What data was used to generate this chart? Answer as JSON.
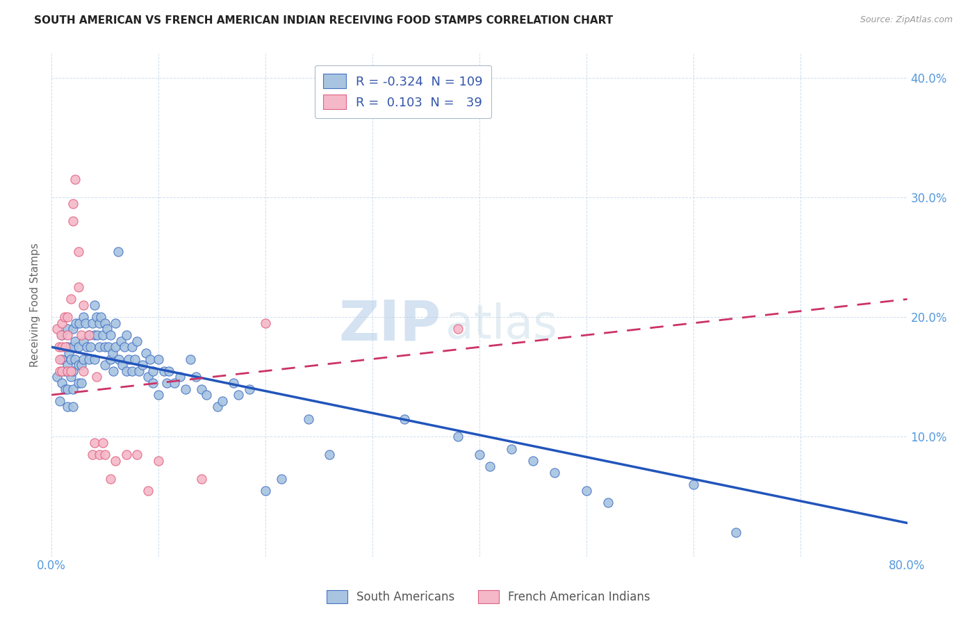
{
  "title": "SOUTH AMERICAN VS FRENCH AMERICAN INDIAN RECEIVING FOOD STAMPS CORRELATION CHART",
  "source": "Source: ZipAtlas.com",
  "ylabel": "Receiving Food Stamps",
  "xlim": [
    0.0,
    0.8
  ],
  "ylim": [
    0.0,
    0.42
  ],
  "xticks": [
    0.0,
    0.1,
    0.2,
    0.3,
    0.4,
    0.5,
    0.6,
    0.7,
    0.8
  ],
  "xticklabels": [
    "0.0%",
    "",
    "",
    "",
    "",
    "",
    "",
    "",
    "80.0%"
  ],
  "yticks": [
    0.0,
    0.1,
    0.2,
    0.3,
    0.4
  ],
  "yticklabels": [
    "",
    "10.0%",
    "20.0%",
    "30.0%",
    "40.0%"
  ],
  "blue_R": "-0.324",
  "blue_N": "109",
  "pink_R": "0.103",
  "pink_N": "39",
  "blue_color": "#a8c4e0",
  "pink_color": "#f4b8c8",
  "blue_edge_color": "#4472c4",
  "pink_edge_color": "#e06080",
  "blue_line_color": "#2255bb",
  "pink_line_color": "#cc3366",
  "tick_label_color": "#5599dd",
  "watermark_zip": "ZIP",
  "watermark_atlas": "atlas",
  "blue_trend": [
    0.175,
    0.028
  ],
  "pink_trend": [
    0.135,
    0.215
  ],
  "blue_scatter_x": [
    0.005,
    0.008,
    0.01,
    0.01,
    0.01,
    0.012,
    0.013,
    0.015,
    0.015,
    0.015,
    0.015,
    0.015,
    0.016,
    0.018,
    0.018,
    0.02,
    0.02,
    0.02,
    0.02,
    0.02,
    0.022,
    0.022,
    0.023,
    0.025,
    0.025,
    0.025,
    0.026,
    0.028,
    0.028,
    0.03,
    0.03,
    0.03,
    0.032,
    0.033,
    0.035,
    0.035,
    0.036,
    0.038,
    0.04,
    0.04,
    0.04,
    0.042,
    0.043,
    0.045,
    0.045,
    0.046,
    0.048,
    0.05,
    0.05,
    0.05,
    0.052,
    0.053,
    0.055,
    0.055,
    0.057,
    0.058,
    0.06,
    0.06,
    0.062,
    0.063,
    0.065,
    0.066,
    0.068,
    0.07,
    0.07,
    0.072,
    0.075,
    0.075,
    0.078,
    0.08,
    0.082,
    0.085,
    0.088,
    0.09,
    0.092,
    0.095,
    0.095,
    0.1,
    0.1,
    0.105,
    0.108,
    0.11,
    0.115,
    0.12,
    0.125,
    0.13,
    0.135,
    0.14,
    0.145,
    0.155,
    0.16,
    0.17,
    0.175,
    0.185,
    0.2,
    0.215,
    0.24,
    0.26,
    0.33,
    0.38,
    0.4,
    0.41,
    0.43,
    0.45,
    0.47,
    0.5,
    0.52,
    0.6,
    0.64
  ],
  "blue_scatter_y": [
    0.15,
    0.13,
    0.145,
    0.165,
    0.185,
    0.155,
    0.14,
    0.16,
    0.175,
    0.19,
    0.14,
    0.125,
    0.17,
    0.165,
    0.15,
    0.175,
    0.19,
    0.155,
    0.14,
    0.125,
    0.18,
    0.165,
    0.195,
    0.175,
    0.16,
    0.145,
    0.195,
    0.16,
    0.145,
    0.2,
    0.18,
    0.165,
    0.195,
    0.175,
    0.185,
    0.165,
    0.175,
    0.195,
    0.21,
    0.185,
    0.165,
    0.2,
    0.185,
    0.195,
    0.175,
    0.2,
    0.185,
    0.195,
    0.175,
    0.16,
    0.19,
    0.175,
    0.185,
    0.165,
    0.17,
    0.155,
    0.175,
    0.195,
    0.255,
    0.165,
    0.18,
    0.16,
    0.175,
    0.155,
    0.185,
    0.165,
    0.175,
    0.155,
    0.165,
    0.18,
    0.155,
    0.16,
    0.17,
    0.15,
    0.165,
    0.155,
    0.145,
    0.165,
    0.135,
    0.155,
    0.145,
    0.155,
    0.145,
    0.15,
    0.14,
    0.165,
    0.15,
    0.14,
    0.135,
    0.125,
    0.13,
    0.145,
    0.135,
    0.14,
    0.055,
    0.065,
    0.115,
    0.085,
    0.115,
    0.1,
    0.085,
    0.075,
    0.09,
    0.08,
    0.07,
    0.055,
    0.045,
    0.06,
    0.02
  ],
  "pink_scatter_x": [
    0.005,
    0.007,
    0.008,
    0.008,
    0.009,
    0.01,
    0.01,
    0.01,
    0.012,
    0.013,
    0.015,
    0.015,
    0.015,
    0.018,
    0.018,
    0.02,
    0.02,
    0.022,
    0.025,
    0.025,
    0.028,
    0.03,
    0.03,
    0.035,
    0.038,
    0.04,
    0.042,
    0.045,
    0.048,
    0.05,
    0.055,
    0.06,
    0.07,
    0.08,
    0.09,
    0.1,
    0.14,
    0.2,
    0.38
  ],
  "pink_scatter_y": [
    0.19,
    0.175,
    0.165,
    0.155,
    0.185,
    0.195,
    0.175,
    0.155,
    0.2,
    0.175,
    0.155,
    0.2,
    0.185,
    0.215,
    0.155,
    0.28,
    0.295,
    0.315,
    0.255,
    0.225,
    0.185,
    0.21,
    0.155,
    0.185,
    0.085,
    0.095,
    0.15,
    0.085,
    0.095,
    0.085,
    0.065,
    0.08,
    0.085,
    0.085,
    0.055,
    0.08,
    0.065,
    0.195,
    0.19
  ]
}
